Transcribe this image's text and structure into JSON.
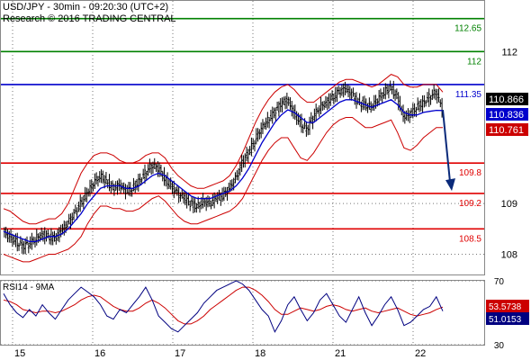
{
  "header": {
    "line1": "USD/JPY - 30min - 09:20:30 (UTC+2)",
    "line2": "Research © 2016 TRADING CENTRAL"
  },
  "colors": {
    "support": "#e00000",
    "resistance_green": "#008000",
    "resistance_blue": "#0000cc",
    "price": "#000000",
    "band": "#cc0000",
    "ma": "#0000cc",
    "arrow": "#0a2a7a",
    "grid": "#777777",
    "current_price_box": "#000000",
    "ma_box": "#0000cc",
    "band_box": "#cc0000",
    "rsi_line": "#000080",
    "rsi_ma": "#cc0000"
  },
  "chart_data": [
    {
      "type": "candlestick",
      "panel": "price",
      "symbol": "USD/JPY",
      "timeframe": "30min",
      "ylim": [
        107.6,
        113.0
      ],
      "y_ticks": [
        108,
        109,
        112
      ],
      "x_labels": [
        "15",
        "16",
        "17",
        "18",
        "21",
        "22"
      ],
      "grid": "dotted",
      "levels": [
        {
          "value": 112.65,
          "label": "112.65",
          "color": "#008000",
          "kind": "resistance"
        },
        {
          "value": 112.0,
          "label": "112",
          "color": "#008000",
          "kind": "resistance"
        },
        {
          "value": 111.35,
          "label": "111.35",
          "color": "#0000cc",
          "kind": "pivot"
        },
        {
          "value": 109.8,
          "label": "109.8",
          "color": "#e00000",
          "kind": "support"
        },
        {
          "value": 109.2,
          "label": "109.2",
          "color": "#e00000",
          "kind": "support"
        },
        {
          "value": 108.5,
          "label": "108.5",
          "color": "#e00000",
          "kind": "support"
        }
      ],
      "price_tags": [
        {
          "value": 110.866,
          "label": "110.866",
          "style": "price"
        },
        {
          "value": 110.836,
          "label": "110.836",
          "style": "ma"
        },
        {
          "value": 110.761,
          "label": "110.761",
          "style": "band"
        }
      ],
      "arrow": {
        "from": 110.85,
        "to": 109.25,
        "direction": "down"
      },
      "close_path": [
        108.45,
        108.35,
        108.25,
        108.15,
        108.2,
        108.3,
        108.4,
        108.35,
        108.3,
        108.45,
        108.6,
        108.8,
        109.0,
        109.2,
        109.4,
        109.55,
        109.45,
        109.3,
        109.35,
        109.25,
        109.3,
        109.45,
        109.6,
        109.75,
        109.7,
        109.5,
        109.35,
        109.2,
        109.1,
        109.0,
        108.95,
        109.05,
        109.0,
        109.1,
        109.15,
        109.3,
        109.5,
        109.8,
        110.0,
        110.25,
        110.5,
        110.65,
        110.8,
        110.95,
        111.05,
        110.8,
        110.6,
        110.45,
        110.7,
        110.9,
        111.0,
        111.1,
        111.2,
        111.25,
        111.15,
        111.0,
        110.95,
        110.9,
        111.05,
        111.2,
        111.3,
        111.1,
        110.7,
        110.75,
        110.9,
        111.0,
        111.1,
        111.2,
        110.87
      ],
      "bollinger_upper": [
        108.9,
        108.85,
        108.75,
        108.65,
        108.6,
        108.6,
        108.65,
        108.7,
        108.7,
        108.8,
        109.0,
        109.3,
        109.6,
        109.8,
        109.95,
        110.0,
        110.0,
        109.95,
        109.85,
        109.8,
        109.8,
        109.85,
        109.95,
        110.0,
        110.0,
        109.9,
        109.7,
        109.55,
        109.45,
        109.35,
        109.3,
        109.3,
        109.35,
        109.4,
        109.45,
        109.55,
        109.75,
        110.0,
        110.3,
        110.6,
        110.85,
        111.05,
        111.2,
        111.3,
        111.35,
        111.25,
        111.1,
        111.0,
        111.0,
        111.1,
        111.2,
        111.3,
        111.4,
        111.45,
        111.45,
        111.4,
        111.35,
        111.3,
        111.35,
        111.45,
        111.55,
        111.5,
        111.35,
        111.3,
        111.3,
        111.35,
        111.35,
        111.35,
        111.2
      ],
      "bollinger_lower": [
        108.0,
        107.95,
        107.9,
        107.85,
        107.85,
        107.9,
        107.95,
        108.0,
        108.0,
        108.05,
        108.1,
        108.2,
        108.35,
        108.6,
        108.8,
        108.95,
        108.95,
        108.9,
        108.9,
        108.85,
        108.85,
        108.9,
        109.0,
        109.1,
        109.15,
        109.05,
        108.9,
        108.75,
        108.65,
        108.6,
        108.6,
        108.65,
        108.7,
        108.75,
        108.8,
        108.85,
        108.95,
        109.1,
        109.35,
        109.6,
        109.85,
        110.05,
        110.2,
        110.3,
        110.3,
        110.1,
        109.9,
        109.85,
        110.0,
        110.2,
        110.4,
        110.55,
        110.65,
        110.7,
        110.7,
        110.6,
        110.5,
        110.5,
        110.55,
        110.6,
        110.65,
        110.4,
        110.1,
        110.05,
        110.15,
        110.3,
        110.4,
        110.5,
        110.5
      ],
      "moving_average": [
        108.45,
        108.4,
        108.35,
        108.3,
        108.25,
        108.25,
        108.3,
        108.35,
        108.35,
        108.4,
        108.5,
        108.65,
        108.8,
        109.0,
        109.15,
        109.3,
        109.35,
        109.35,
        109.35,
        109.3,
        109.3,
        109.35,
        109.45,
        109.55,
        109.6,
        109.55,
        109.45,
        109.35,
        109.25,
        109.15,
        109.1,
        109.1,
        109.1,
        109.15,
        109.2,
        109.25,
        109.35,
        109.5,
        109.7,
        109.95,
        110.2,
        110.4,
        110.6,
        110.75,
        110.85,
        110.8,
        110.7,
        110.6,
        110.6,
        110.7,
        110.8,
        110.9,
        111.0,
        111.05,
        111.05,
        111.0,
        110.95,
        110.9,
        110.95,
        111.0,
        111.05,
        110.95,
        110.8,
        110.75,
        110.75,
        110.8,
        110.82,
        110.84,
        110.836
      ]
    },
    {
      "type": "line",
      "panel": "indicator",
      "title": "RSI14 - 9MA",
      "ylim": [
        30,
        70
      ],
      "y_ticks": [
        30,
        70
      ],
      "x_labels": [
        "15",
        "16",
        "17",
        "18",
        "21",
        "22"
      ],
      "value_tags": [
        {
          "value": 53.5738,
          "label": "53.5738",
          "series": "ma"
        },
        {
          "value": 51.0153,
          "label": "51.0153",
          "series": "rsi"
        }
      ],
      "rsi": [
        62,
        55,
        50,
        47,
        52,
        48,
        55,
        50,
        46,
        52,
        58,
        62,
        66,
        63,
        60,
        55,
        48,
        46,
        52,
        50,
        55,
        60,
        66,
        58,
        48,
        44,
        40,
        38,
        42,
        46,
        50,
        56,
        60,
        64,
        66,
        68,
        70,
        68,
        64,
        58,
        52,
        48,
        38,
        45,
        55,
        60,
        52,
        45,
        50,
        58,
        62,
        55,
        48,
        44,
        52,
        60,
        50,
        42,
        48,
        55,
        60,
        52,
        42,
        44,
        48,
        52,
        54,
        60,
        51
      ],
      "rsi_ma": [
        58,
        57,
        55,
        52,
        51,
        50,
        51,
        51,
        50,
        51,
        53,
        55,
        58,
        60,
        61,
        60,
        57,
        54,
        52,
        51,
        51,
        53,
        56,
        58,
        56,
        53,
        49,
        45,
        43,
        43,
        45,
        48,
        52,
        55,
        58,
        61,
        64,
        66,
        66,
        64,
        61,
        57,
        52,
        49,
        49,
        51,
        53,
        52,
        51,
        52,
        54,
        55,
        54,
        52,
        51,
        52,
        53,
        51,
        50,
        51,
        52,
        53,
        51,
        49,
        48,
        49,
        50,
        52,
        53.57
      ]
    }
  ]
}
